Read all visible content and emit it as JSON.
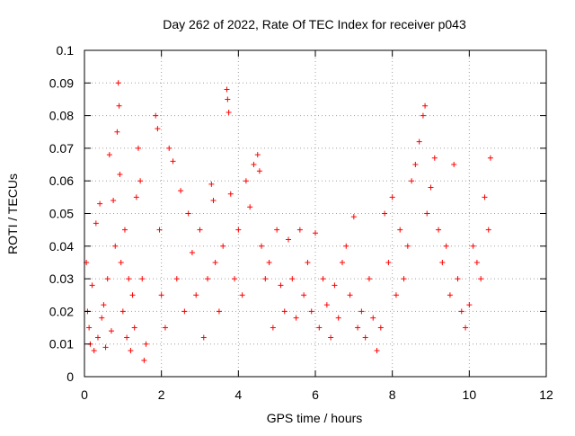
{
  "chart_data": {
    "type": "scatter",
    "title": "Day 262 of 2022, Rate Of TEC Index for receiver p043",
    "xlabel": "GPS time / hours",
    "ylabel": "ROTI / TECUs",
    "xlim": [
      0,
      12
    ],
    "ylim": [
      0,
      0.1
    ],
    "x_ticks": [
      0,
      2,
      4,
      6,
      8,
      10,
      12
    ],
    "y_ticks": [
      0,
      0.01,
      0.02,
      0.03,
      0.04,
      0.05,
      0.06,
      0.07,
      0.08,
      0.09,
      0.1
    ],
    "x_tick_labels": [
      "0",
      "2",
      "4",
      "6",
      "8",
      "10",
      "12"
    ],
    "y_tick_labels": [
      "0",
      "0.01",
      "0.02",
      "0.03",
      "0.04",
      "0.05",
      "0.06",
      "0.07",
      "0.08",
      "0.09",
      "0.1"
    ],
    "grid": true,
    "legend": "none",
    "marker": "+",
    "color": "#ff0000",
    "series": [
      {
        "x": [
          0.05,
          0.08,
          0.12,
          0.15,
          0.2,
          0.25,
          0.3,
          0.35,
          0.4,
          0.45,
          0.5,
          0.55,
          0.6,
          0.65,
          0.7,
          0.75,
          0.8,
          0.85,
          0.88,
          0.9,
          0.92,
          0.95,
          1.0,
          1.05,
          1.1,
          1.15,
          1.2,
          1.25,
          1.3,
          1.35,
          1.4,
          1.45,
          1.5,
          1.55,
          1.6,
          1.85,
          1.9,
          1.95,
          2.0,
          2.1,
          2.2,
          2.3,
          2.4,
          2.5,
          2.6,
          2.7,
          2.8,
          2.9,
          3.0,
          3.1,
          3.2,
          3.3,
          3.35,
          3.4,
          3.5,
          3.6,
          3.7,
          3.72,
          3.75,
          3.8,
          3.9,
          4.0,
          4.1,
          4.2,
          4.3,
          4.4,
          4.5,
          4.55,
          4.6,
          4.7,
          4.8,
          4.9,
          5.0,
          5.1,
          5.2,
          5.3,
          5.4,
          5.5,
          5.6,
          5.7,
          5.8,
          5.9,
          6.0,
          6.1,
          6.2,
          6.3,
          6.4,
          6.5,
          6.6,
          6.7,
          6.8,
          6.9,
          7.0,
          7.1,
          7.2,
          7.3,
          7.4,
          7.5,
          7.6,
          7.7,
          7.8,
          7.9,
          8.0,
          8.1,
          8.2,
          8.3,
          8.4,
          8.5,
          8.6,
          8.7,
          8.8,
          8.85,
          8.9,
          9.0,
          9.1,
          9.2,
          9.3,
          9.4,
          9.5,
          9.6,
          9.7,
          9.8,
          9.9,
          10.0,
          10.1,
          10.2,
          10.3,
          10.4,
          10.5,
          10.55
        ],
        "y": [
          0.035,
          0.02,
          0.015,
          0.01,
          0.028,
          0.008,
          0.047,
          0.012,
          0.053,
          0.018,
          0.022,
          0.009,
          0.03,
          0.068,
          0.014,
          0.054,
          0.04,
          0.075,
          0.09,
          0.083,
          0.062,
          0.035,
          0.02,
          0.045,
          0.012,
          0.03,
          0.008,
          0.025,
          0.015,
          0.055,
          0.07,
          0.06,
          0.03,
          0.005,
          0.01,
          0.08,
          0.076,
          0.045,
          0.025,
          0.015,
          0.07,
          0.066,
          0.03,
          0.057,
          0.02,
          0.05,
          0.038,
          0.025,
          0.045,
          0.012,
          0.03,
          0.059,
          0.054,
          0.035,
          0.02,
          0.04,
          0.088,
          0.085,
          0.081,
          0.056,
          0.03,
          0.045,
          0.025,
          0.06,
          0.052,
          0.065,
          0.068,
          0.063,
          0.04,
          0.03,
          0.035,
          0.015,
          0.045,
          0.028,
          0.02,
          0.042,
          0.03,
          0.018,
          0.045,
          0.025,
          0.035,
          0.02,
          0.044,
          0.015,
          0.03,
          0.022,
          0.012,
          0.028,
          0.018,
          0.035,
          0.04,
          0.025,
          0.049,
          0.015,
          0.02,
          0.012,
          0.03,
          0.018,
          0.008,
          0.015,
          0.05,
          0.035,
          0.055,
          0.025,
          0.045,
          0.03,
          0.04,
          0.06,
          0.065,
          0.072,
          0.08,
          0.083,
          0.05,
          0.058,
          0.067,
          0.045,
          0.035,
          0.04,
          0.025,
          0.065,
          0.03,
          0.02,
          0.015,
          0.022,
          0.04,
          0.035,
          0.03,
          0.055,
          0.045,
          0.067
        ]
      }
    ]
  }
}
